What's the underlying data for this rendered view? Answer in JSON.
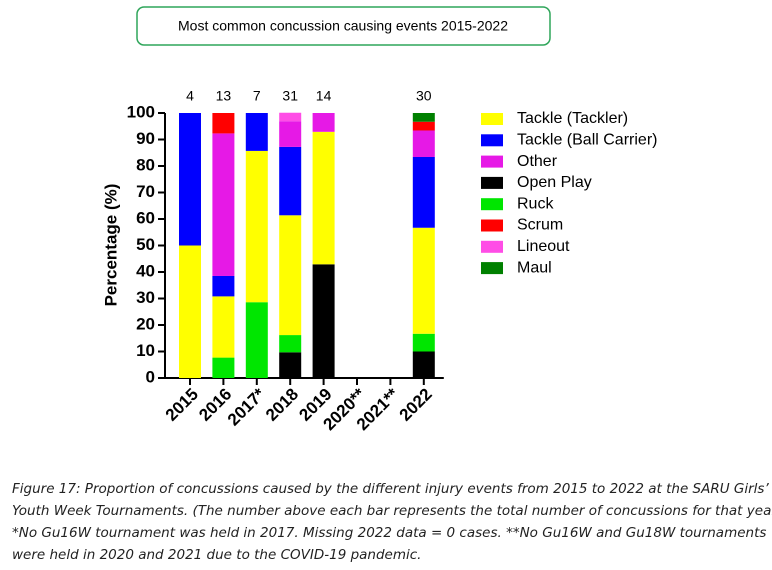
{
  "chart_data": {
    "type": "stacked_bar",
    "title": "Most common concussion causing events 2015-2022",
    "ylabel": "Percentage (%)",
    "categories": [
      "2015",
      "2016",
      "2017*",
      "2018",
      "2019",
      "2020**",
      "2021**",
      "2022"
    ],
    "counts": [
      "4",
      "13",
      "7",
      "31",
      "14",
      null,
      null,
      "30"
    ],
    "ylim": [
      0,
      100
    ],
    "yticks": [
      0,
      10,
      20,
      30,
      40,
      50,
      60,
      70,
      80,
      90,
      100
    ],
    "series": [
      {
        "name": "Tackle (Tackler)",
        "color": "#ffff00",
        "values": [
          50,
          23.1,
          57.1,
          45.2,
          50,
          null,
          null,
          40
        ]
      },
      {
        "name": "Tackle (Ball Carrier)",
        "color": "#0000ff",
        "values": [
          50,
          7.7,
          14.3,
          25.8,
          0,
          null,
          null,
          26.7
        ]
      },
      {
        "name": "Other",
        "color": "#e619e6",
        "values": [
          0,
          53.8,
          0,
          9.7,
          7.1,
          null,
          null,
          10
        ]
      },
      {
        "name": "Open Play",
        "color": "#000000",
        "values": [
          0,
          0,
          0,
          9.7,
          42.9,
          null,
          null,
          10
        ]
      },
      {
        "name": "Ruck",
        "color": "#00e600",
        "values": [
          0,
          7.7,
          28.6,
          6.5,
          0,
          null,
          null,
          6.7
        ]
      },
      {
        "name": "Scrum",
        "color": "#ff0000",
        "values": [
          0,
          7.7,
          0,
          0,
          0,
          null,
          null,
          3.3
        ]
      },
      {
        "name": "Lineout",
        "color": "#ff4de6",
        "values": [
          0,
          0,
          0,
          3.2,
          0,
          null,
          null,
          0
        ]
      },
      {
        "name": "Maul",
        "color": "#008000",
        "values": [
          0,
          0,
          0,
          0,
          0,
          null,
          null,
          3.3
        ]
      }
    ]
  },
  "caption": [
    "Figure 17: Proportion of concussions caused by the different injury events from 2015 to 2022 at the SARU Girls’",
    "Youth Week Tournaments. (The number above each bar represents the total number of concussions for that year).",
    "*No Gu16W tournament was held in 2017. Missing 2022 data = 0 cases. **No Gu16W and Gu18W tournaments",
    "were held in 2020 and 2021 due to the COVID-19 pandemic."
  ]
}
